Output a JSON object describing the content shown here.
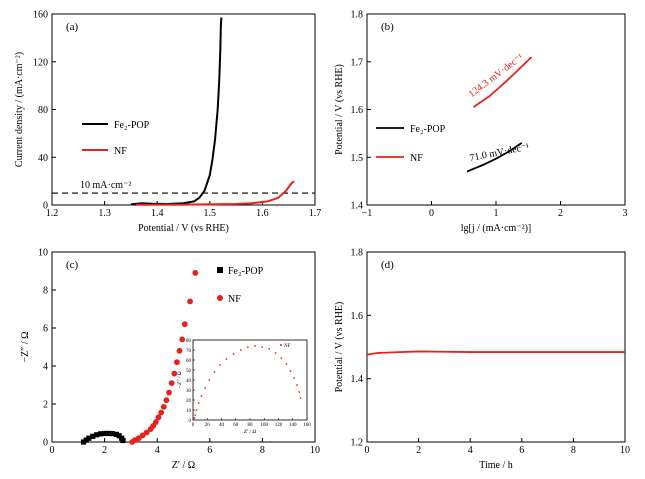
{
  "chart_data": [
    {
      "panel": "(a)",
      "type": "line",
      "xlabel": "Potential / V (vs RHE)",
      "ylabel": "Current density / (mA·cm⁻²)",
      "xlim": [
        1.2,
        1.7
      ],
      "ylim": [
        0,
        160
      ],
      "xticks": [
        "1.2",
        "1.3",
        "1.4",
        "1.5",
        "1.6",
        "1.7"
      ],
      "yticks": [
        "0",
        "40",
        "80",
        "120",
        "160"
      ],
      "annotation": "10 mA·cm⁻²",
      "reference_line": {
        "y": 10,
        "style": "dashed"
      },
      "legend": {
        "placement": "left-middle"
      },
      "series": [
        {
          "name": "Fe₂-POP",
          "color": "#000000",
          "points": [
            [
              1.35,
              0.5
            ],
            [
              1.37,
              1.5
            ],
            [
              1.39,
              1.0
            ],
            [
              1.42,
              0.8
            ],
            [
              1.45,
              1.5
            ],
            [
              1.47,
              3
            ],
            [
              1.48,
              6
            ],
            [
              1.49,
              12
            ],
            [
              1.5,
              25
            ],
            [
              1.505,
              38
            ],
            [
              1.51,
              55
            ],
            [
              1.515,
              80
            ],
            [
              1.518,
              105
            ],
            [
              1.52,
              130
            ],
            [
              1.521,
              150
            ],
            [
              1.522,
              157
            ]
          ]
        },
        {
          "name": "NF",
          "color": "#e8211d",
          "points": [
            [
              1.36,
              0.2
            ],
            [
              1.45,
              0.3
            ],
            [
              1.55,
              0.8
            ],
            [
              1.58,
              1.5
            ],
            [
              1.61,
              3
            ],
            [
              1.63,
              6
            ],
            [
              1.645,
              12
            ],
            [
              1.655,
              18
            ],
            [
              1.66,
              20
            ]
          ]
        }
      ]
    },
    {
      "panel": "(b)",
      "type": "line",
      "xlabel": "lg[j / (mA·cm⁻²)]",
      "ylabel": "Potential / V (vs RHE)",
      "xlim": [
        -1,
        3
      ],
      "ylim": [
        1.4,
        1.8
      ],
      "xticks": [
        "−1",
        "0",
        "1",
        "2",
        "3"
      ],
      "yticks": [
        "1.4",
        "1.5",
        "1.6",
        "1.7",
        "1.8"
      ],
      "legend": {
        "placement": "left-middle"
      },
      "series": [
        {
          "name": "Fe₂-POP",
          "color": "#000000",
          "slope_label": "71.0 mV·dec⁻¹",
          "points": [
            [
              0.55,
              1.47
            ],
            [
              0.8,
              1.484
            ],
            [
              1.0,
              1.497
            ],
            [
              1.2,
              1.512
            ],
            [
              1.4,
              1.53
            ]
          ]
        },
        {
          "name": "NF",
          "color": "#e8211d",
          "slope_label": "124.3 mV·dec⁻¹",
          "points": [
            [
              0.65,
              1.605
            ],
            [
              0.9,
              1.628
            ],
            [
              1.1,
              1.652
            ],
            [
              1.3,
              1.677
            ],
            [
              1.55,
              1.71
            ]
          ]
        }
      ]
    },
    {
      "panel": "(c)",
      "type": "scatter",
      "xlabel": "Z′ / Ω",
      "ylabel": "−Z″ / Ω",
      "xlim": [
        0,
        10
      ],
      "ylim": [
        0,
        10
      ],
      "xticks": [
        "0",
        "2",
        "4",
        "6",
        "8",
        "10"
      ],
      "yticks": [
        "0",
        "2",
        "4",
        "6",
        "8",
        "10"
      ],
      "legend": {
        "placement": "top-right"
      },
      "series": [
        {
          "name": "Fe₂-POP",
          "color": "#000000",
          "marker": "square",
          "points": [
            [
              1.2,
              0.0
            ],
            [
              1.3,
              0.1
            ],
            [
              1.4,
              0.2
            ],
            [
              1.55,
              0.3
            ],
            [
              1.7,
              0.38
            ],
            [
              1.85,
              0.43
            ],
            [
              2.0,
              0.45
            ],
            [
              2.15,
              0.45
            ],
            [
              2.3,
              0.44
            ],
            [
              2.45,
              0.4
            ],
            [
              2.55,
              0.33
            ],
            [
              2.65,
              0.2
            ],
            [
              2.7,
              0.08
            ]
          ]
        },
        {
          "name": "NF",
          "color": "#e8211d",
          "marker": "circle",
          "points": [
            [
              3.05,
              0.0
            ],
            [
              3.15,
              0.1
            ],
            [
              3.3,
              0.2
            ],
            [
              3.45,
              0.35
            ],
            [
              3.6,
              0.5
            ],
            [
              3.75,
              0.68
            ],
            [
              3.85,
              0.85
            ],
            [
              3.95,
              1.05
            ],
            [
              4.05,
              1.3
            ],
            [
              4.15,
              1.55
            ],
            [
              4.25,
              1.85
            ],
            [
              4.35,
              2.2
            ],
            [
              4.45,
              2.6
            ],
            [
              4.55,
              3.1
            ],
            [
              4.65,
              3.6
            ],
            [
              4.75,
              4.2
            ],
            [
              4.85,
              4.8
            ],
            [
              4.95,
              5.4
            ],
            [
              5.05,
              6.2
            ],
            [
              5.25,
              7.4
            ],
            [
              5.45,
              8.9
            ]
          ]
        }
      ],
      "inset": {
        "xlabel": "Z′ / Ω",
        "ylabel": "−Z″ / Ω",
        "xlim": [
          0,
          160
        ],
        "ylim": [
          0,
          80
        ],
        "xticks": [
          "0",
          "20",
          "40",
          "60",
          "80",
          "100",
          "120",
          "140",
          "160"
        ],
        "yticks": [
          "0",
          "10",
          "20",
          "30",
          "40",
          "50",
          "60",
          "70",
          "80"
        ],
        "legend": "NF",
        "color": "#e8211d",
        "points": [
          [
            1,
            0
          ],
          [
            2,
            2
          ],
          [
            3,
            5
          ],
          [
            5,
            10
          ],
          [
            8,
            17
          ],
          [
            12,
            24
          ],
          [
            17,
            32
          ],
          [
            23,
            40
          ],
          [
            30,
            48
          ],
          [
            38,
            55
          ],
          [
            47,
            61
          ],
          [
            57,
            66
          ],
          [
            67,
            70
          ],
          [
            77,
            73
          ],
          [
            87,
            74
          ],
          [
            97,
            73
          ],
          [
            107,
            71
          ],
          [
            116,
            67
          ],
          [
            124,
            62
          ],
          [
            131,
            56
          ],
          [
            137,
            49
          ],
          [
            142,
            42
          ],
          [
            146,
            35
          ],
          [
            149,
            28
          ],
          [
            151,
            22
          ]
        ]
      }
    },
    {
      "panel": "(d)",
      "type": "line",
      "xlabel": "Time / h",
      "ylabel": "Potential / V (vs RHE)",
      "xlim": [
        0,
        10
      ],
      "ylim": [
        1.2,
        1.8
      ],
      "xticks": [
        "0",
        "2",
        "4",
        "6",
        "8",
        "10"
      ],
      "yticks": [
        "1.2",
        "1.4",
        "1.6",
        "1.8"
      ],
      "series": [
        {
          "color": "#e8211d",
          "points": [
            [
              0,
              1.476
            ],
            [
              0.4,
              1.481
            ],
            [
              1,
              1.483
            ],
            [
              2,
              1.486
            ],
            [
              3,
              1.485
            ],
            [
              4,
              1.484
            ],
            [
              6,
              1.484
            ],
            [
              8,
              1.484
            ],
            [
              10,
              1.484
            ]
          ]
        }
      ]
    }
  ]
}
